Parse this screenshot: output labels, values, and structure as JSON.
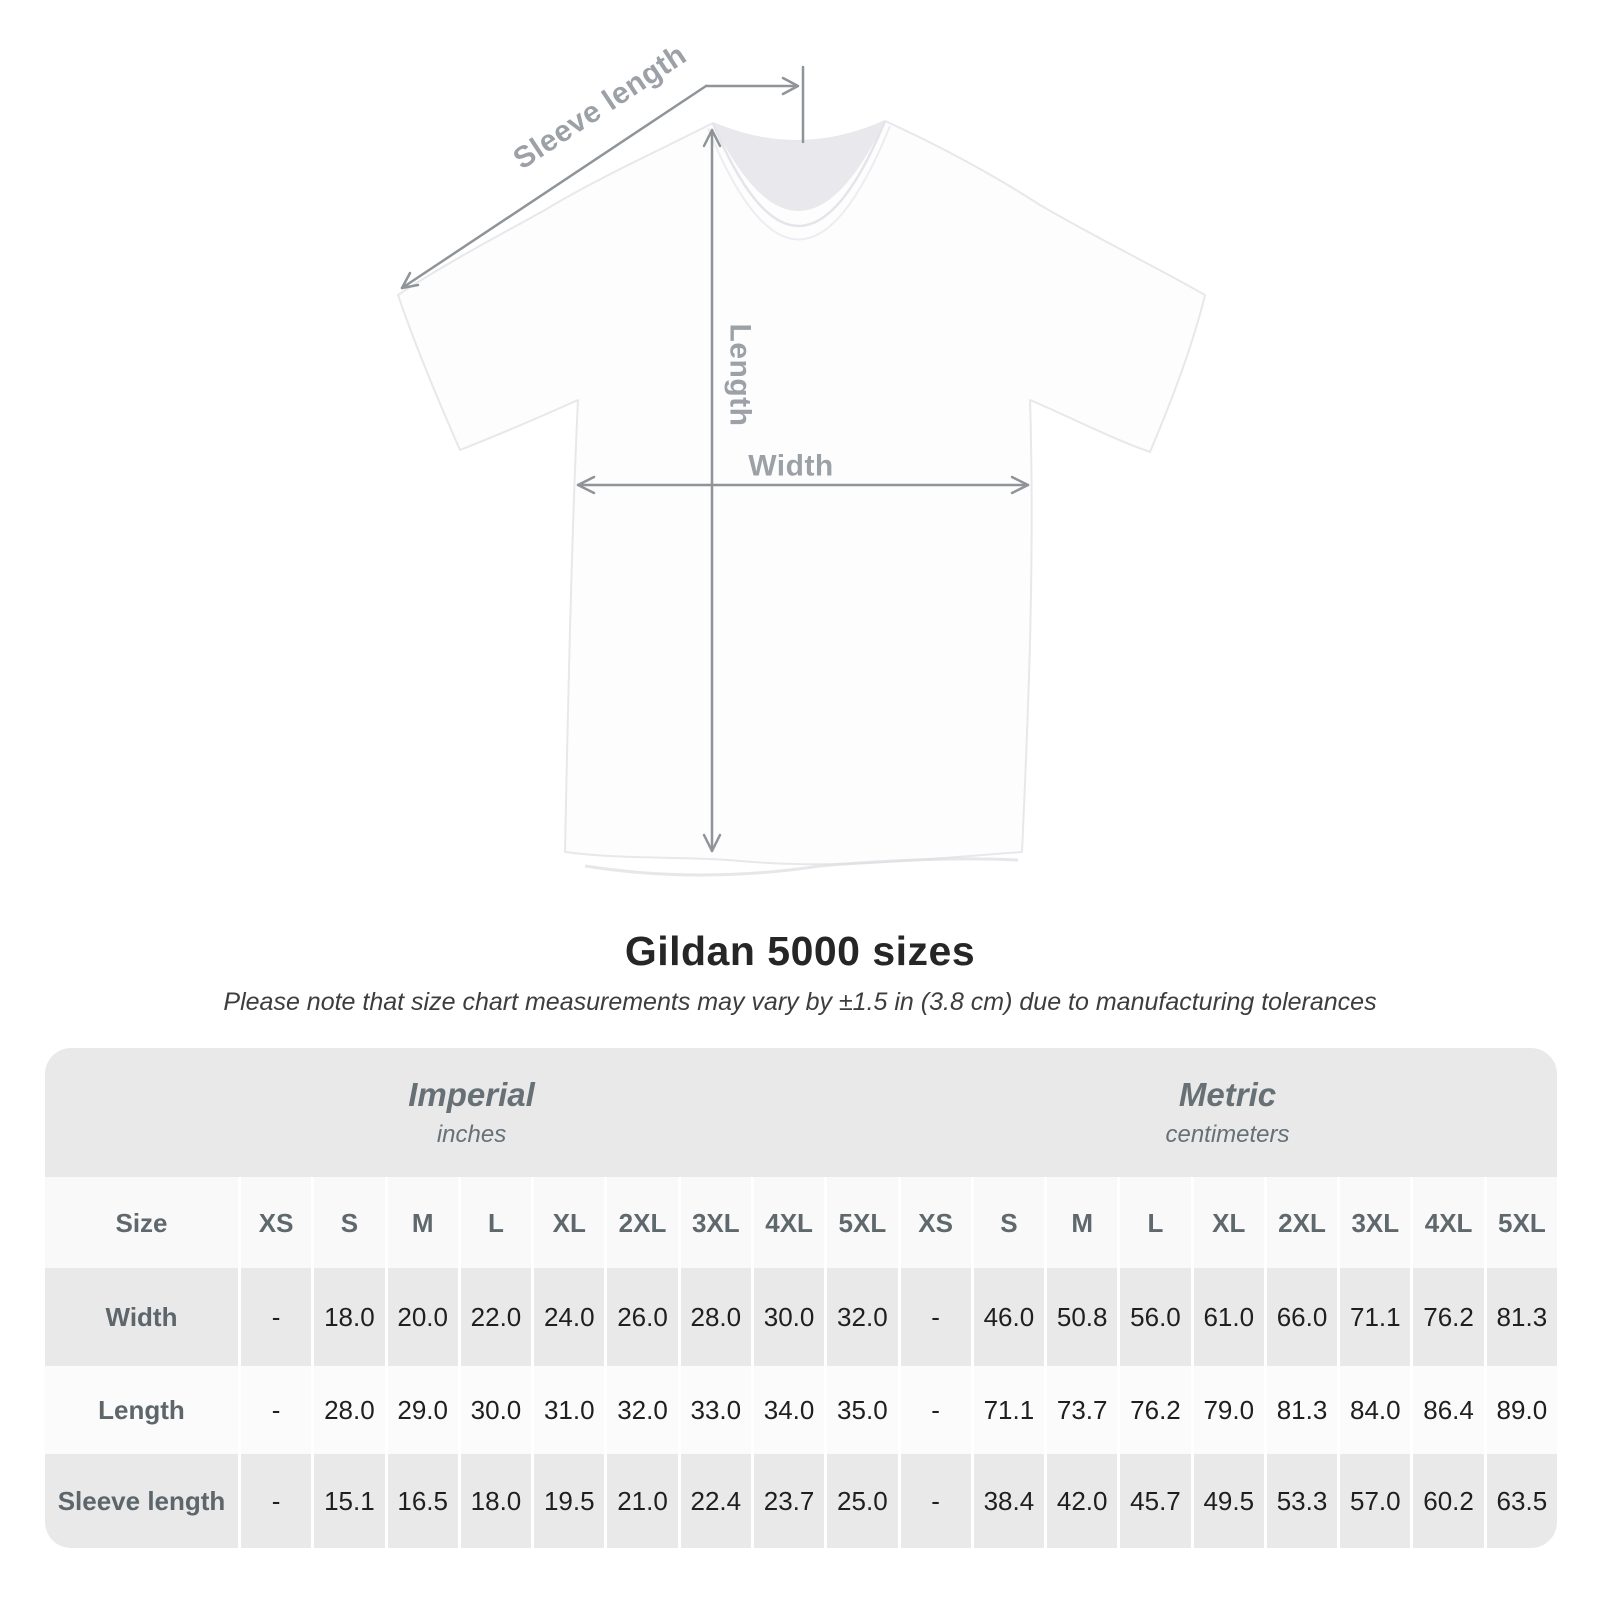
{
  "diagram": {
    "sleeve_length_label": "Sleeve length",
    "length_label": "Length",
    "width_label": "Width",
    "arrow_color": "#8f9499",
    "label_color": "#9ba1a6"
  },
  "chart_data": {
    "type": "table",
    "title": "Gildan 5000 sizes",
    "note": "Please note that size chart measurements may vary by ±1.5 in (3.8 cm) due to manufacturing tolerances",
    "corner_header": "Size",
    "unit_groups": [
      {
        "label": "Imperial",
        "unit": "inches"
      },
      {
        "label": "Metric",
        "unit": "centimeters"
      }
    ],
    "sizes": [
      "XS",
      "S",
      "M",
      "L",
      "XL",
      "2XL",
      "3XL",
      "4XL",
      "5XL"
    ],
    "rows": [
      {
        "label": "Width",
        "imperial": [
          "-",
          "18.0",
          "20.0",
          "22.0",
          "24.0",
          "26.0",
          "28.0",
          "30.0",
          "32.0"
        ],
        "metric": [
          "-",
          "46.0",
          "50.8",
          "56.0",
          "61.0",
          "66.0",
          "71.1",
          "76.2",
          "81.3"
        ]
      },
      {
        "label": "Length",
        "imperial": [
          "-",
          "28.0",
          "29.0",
          "30.0",
          "31.0",
          "32.0",
          "33.0",
          "34.0",
          "35.0"
        ],
        "metric": [
          "-",
          "71.1",
          "73.7",
          "76.2",
          "79.0",
          "81.3",
          "84.0",
          "86.4",
          "89.0"
        ]
      },
      {
        "label": "Sleeve length",
        "imperial": [
          "-",
          "15.1",
          "16.5",
          "18.0",
          "19.5",
          "21.0",
          "22.4",
          "23.7",
          "25.0"
        ],
        "metric": [
          "-",
          "38.4",
          "42.0",
          "45.7",
          "49.5",
          "53.3",
          "57.0",
          "60.2",
          "63.5"
        ]
      }
    ],
    "colors": {
      "band_background": "#e9e9ea",
      "row_alternate": "#e9e9ea",
      "row_light": "#fbfbfb",
      "header_text": "#5f686d",
      "value_text": "#1f1f1f"
    }
  }
}
